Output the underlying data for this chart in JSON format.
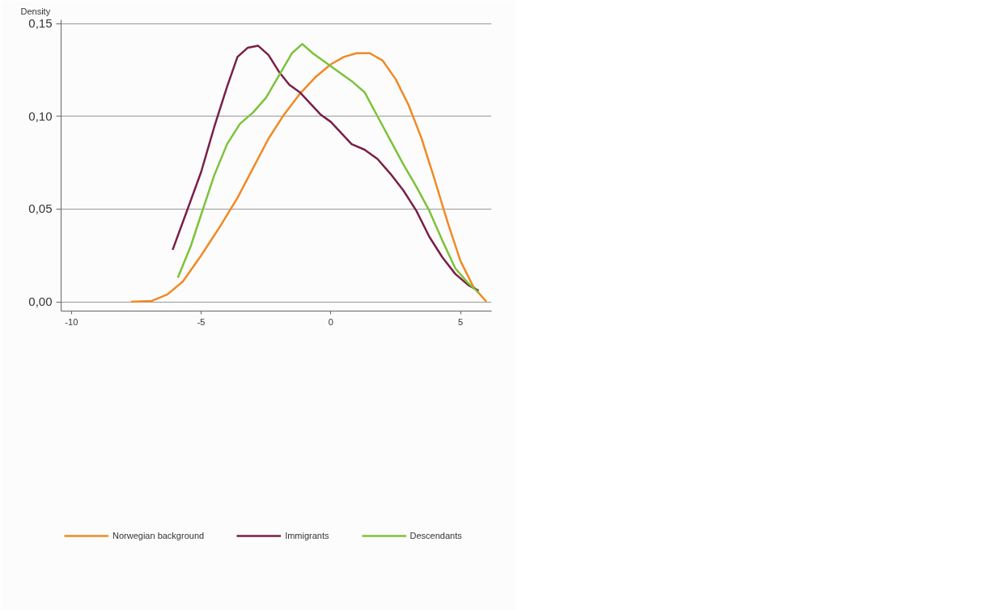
{
  "chart_data": {
    "type": "line",
    "ylabel": "Density",
    "xlim": [
      -10.4,
      6.2
    ],
    "ylim": [
      -0.005,
      0.152
    ],
    "xticks": [
      -10,
      -5,
      0,
      5
    ],
    "yticks": [
      {
        "value": 0,
        "label": "0,00"
      },
      {
        "value": 0.05,
        "label": "0,05"
      },
      {
        "value": 0.1,
        "label": "0,10"
      },
      {
        "value": 0.15,
        "label": "0,15"
      }
    ],
    "grid": "y",
    "legend": "bottom",
    "marker": "none",
    "line_style": "solid",
    "series": [
      {
        "name": "Norwegian background",
        "color": "#f08a24",
        "x": [
          -7.7,
          -6.9,
          -6.3,
          -5.7,
          -5,
          -4.3,
          -3.6,
          -3,
          -2.4,
          -1.8,
          -1.2,
          -0.6,
          0,
          0.5,
          1,
          1.5,
          2,
          2.5,
          3,
          3.5,
          4,
          4.5,
          5,
          5.5,
          6
        ],
        "values": [
          0,
          0.0005,
          0.004,
          0.011,
          0.025,
          0.04,
          0.056,
          0.072,
          0.088,
          0.101,
          0.112,
          0.121,
          0.128,
          0.132,
          0.134,
          0.134,
          0.13,
          0.12,
          0.106,
          0.088,
          0.066,
          0.043,
          0.022,
          0.008,
          0
        ]
      },
      {
        "name": "Immigrants",
        "color": "#7a1f48",
        "x": [
          -6.1,
          -5.6,
          -5,
          -4.5,
          -4,
          -3.6,
          -3.2,
          -2.8,
          -2.4,
          -2,
          -1.6,
          -1.2,
          -0.8,
          -0.4,
          0,
          0.4,
          0.8,
          1.3,
          1.8,
          2.3,
          2.8,
          3.3,
          3.8,
          4.3,
          4.8,
          5.3,
          5.7
        ],
        "values": [
          0.028,
          0.047,
          0.07,
          0.094,
          0.116,
          0.132,
          0.137,
          0.138,
          0.133,
          0.124,
          0.117,
          0.113,
          0.107,
          0.101,
          0.097,
          0.091,
          0.085,
          0.082,
          0.077,
          0.069,
          0.06,
          0.049,
          0.035,
          0.024,
          0.015,
          0.009,
          0.006
        ]
      },
      {
        "name": "Descendants",
        "color": "#7cc23a",
        "x": [
          -5.9,
          -5.4,
          -5,
          -4.5,
          -4,
          -3.5,
          -3,
          -2.5,
          -2,
          -1.5,
          -1.1,
          -0.7,
          -0.2,
          0.3,
          0.8,
          1.3,
          1.8,
          2.3,
          2.8,
          3.3,
          3.8,
          4.3,
          4.8,
          5.3,
          5.7
        ],
        "values": [
          0.013,
          0.03,
          0.047,
          0.068,
          0.085,
          0.096,
          0.102,
          0.11,
          0.122,
          0.134,
          0.139,
          0.134,
          0.129,
          0.124,
          0.119,
          0.113,
          0.1,
          0.087,
          0.074,
          0.062,
          0.049,
          0.033,
          0.018,
          0.01,
          0.005
        ]
      }
    ]
  }
}
